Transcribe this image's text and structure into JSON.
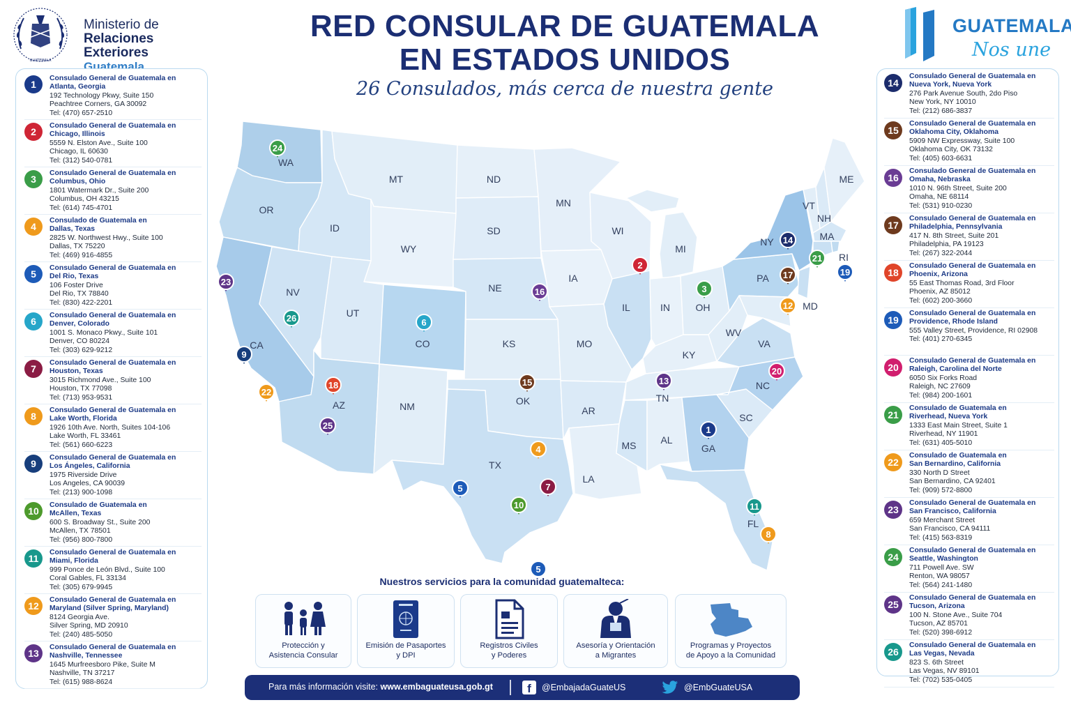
{
  "ministry": {
    "line1": "Ministerio de",
    "line2": "Relaciones Exteriores",
    "line3": "Guatemala",
    "seal_text": "GUATEMALA"
  },
  "title": {
    "line1": "RED CONSULAR DE GUATEMALA",
    "line2": "EN ESTADOS UNIDOS"
  },
  "subtitle": "26 Consulados, más cerca de nuestra gente",
  "brand": {
    "word": "GUATEMALA",
    "slogan": "Nos une"
  },
  "colors": {
    "navy": "#1b2e73",
    "accent": "#2479c4",
    "badges": {
      "1": "#1a3a8a",
      "2": "#cf2535",
      "3": "#3a9d48",
      "4": "#ef9a1c",
      "5": "#1d5bb8",
      "6": "#26a6c9",
      "7": "#8b1c44",
      "8": "#ef9a1c",
      "9": "#173e7c",
      "10": "#4d9a2c",
      "11": "#18988c",
      "12": "#ef9a1c",
      "13": "#5e3488",
      "14": "#1c2c6c",
      "15": "#6e3a1e",
      "16": "#6a3c94",
      "17": "#6e3a1e",
      "18": "#e0452a",
      "19": "#1d5bb8",
      "20": "#d11e6e",
      "21": "#3a9d48",
      "22": "#ef9a1c",
      "23": "#5e3488",
      "24": "#3a9d48",
      "25": "#5e3488",
      "26": "#18988c"
    }
  },
  "consulates_left": [
    {
      "num": "1",
      "name1": "Consulado General de Guatemala en",
      "name2": "Atlanta, Georgia",
      "addr1": "192 Technology Pkwy, Suite 150",
      "addr2": "Peachtree Corners, GA 30092",
      "tel": "Tel: (470) 657-2510"
    },
    {
      "num": "2",
      "name1": "Consulado General de Guatemala en",
      "name2": "Chicago, Illinois",
      "addr1": "5559 N. Elston Ave., Suite 100",
      "addr2": "Chicago, IL 60630",
      "tel": "Tel: (312) 540-0781"
    },
    {
      "num": "3",
      "name1": "Consulado General de Guatemala en",
      "name2": "Columbus, Ohio",
      "addr1": "1801 Watermark Dr., Suite 200",
      "addr2": "Columbus, OH 43215",
      "tel": "Tel: (614) 745-4701"
    },
    {
      "num": "4",
      "name1": "Consulado de Guatemala en",
      "name2": "Dallas, Texas",
      "addr1": "2825 W. Northwest Hwy., Suite 100",
      "addr2": "Dallas, TX 75220",
      "tel": "Tel: (469) 916-4855"
    },
    {
      "num": "5",
      "name1": "Consulado General de Guatemala en",
      "name2": "Del Rio, Texas",
      "addr1": "106 Foster Drive",
      "addr2": "Del Rio, TX 78840",
      "tel": "Tel: (830) 422-2201"
    },
    {
      "num": "6",
      "name1": "Consulado General de Guatemala en",
      "name2": "Denver, Colorado",
      "addr1": "1001 S. Monaco Pkwy., Suite 101",
      "addr2": "Denver, CO 80224",
      "tel": "Tel: (303) 629-9212"
    },
    {
      "num": "7",
      "name1": "Consulado General de Guatemala en",
      "name2": "Houston, Texas",
      "addr1": "3015 Richmond Ave., Suite 100",
      "addr2": "Houston, TX 77098",
      "tel": "Tel: (713) 953-9531"
    },
    {
      "num": "8",
      "name1": "Consulado General de Guatemala en",
      "name2": "Lake Worth, Florida",
      "addr1": "1926 10th Ave. North, Suites 104-106",
      "addr2": "Lake Worth, FL 33461",
      "tel": "Tel: (561) 660-6223"
    },
    {
      "num": "9",
      "name1": "Consulado General de Guatemala en",
      "name2": "Los Ángeles, California",
      "addr1": "1975 Riverside Drive",
      "addr2": "Los Angeles, CA 90039",
      "tel": "Tel: (213) 900-1098"
    },
    {
      "num": "10",
      "name1": "Consulado de Guatemala en",
      "name2": "McAllen, Texas",
      "addr1": "600 S. Broadway St., Suite 200",
      "addr2": "McAllen, TX 78501",
      "tel": "Tel: (956) 800-7800"
    },
    {
      "num": "11",
      "name1": "Consulado General de Guatemala en",
      "name2": "Miami, Florida",
      "addr1": "999 Ponce de León Blvd., Suite 100",
      "addr2": "Coral Gables, FL 33134",
      "tel": "Tel: (305) 679-9945"
    },
    {
      "num": "12",
      "name1": "Consulado General de Guatemala en",
      "name2": "Maryland (Silver Spring, Maryland)",
      "addr1": "8124 Georgia Ave.",
      "addr2": "Silver Spring, MD 20910",
      "tel": "Tel: (240) 485-5050"
    },
    {
      "num": "13",
      "name1": "Consulado General de Guatemala en",
      "name2": "Nashville, Tennessee",
      "addr1": "1645 Murfreesboro Pike, Suite M",
      "addr2": "Nashville, TN 37217",
      "tel": "Tel: (615) 988-8624"
    }
  ],
  "consulates_right": [
    {
      "num": "14",
      "name1": "Consulado General de Guatemala en",
      "name2": "Nueva York, Nueva York",
      "addr1": "276 Park Avenue South, 2do Piso",
      "addr2": "New York, NY 10010",
      "tel": "Tel: (212) 686-3837"
    },
    {
      "num": "15",
      "name1": "Consulado General de Guatemala en",
      "name2": "Oklahoma City, Oklahoma",
      "addr1": "5909 NW Expressway, Suite 100",
      "addr2": "Oklahoma City, OK 73132",
      "tel": "Tel: (405) 603-6631"
    },
    {
      "num": "16",
      "name1": "Consulado General de Guatemala en",
      "name2": "Omaha, Nebraska",
      "addr1": "1010 N. 96th Street, Suite 200",
      "addr2": "Omaha, NE 68114",
      "tel": "Tel: (531) 910-0230"
    },
    {
      "num": "17",
      "name1": "Consulado General de Guatemala en",
      "name2": "Philadelphia, Pennsylvania",
      "addr1": "417 N. 8th Street, Suite 201",
      "addr2": "Philadelphia, PA 19123",
      "tel": "Tel: (267) 322-2044"
    },
    {
      "num": "18",
      "name1": "Consulado General de Guatemala en",
      "name2": "Phoenix, Arizona",
      "addr1": "55 East Thomas Road, 3rd Floor",
      "addr2": "Phoenix, AZ 85012",
      "tel": "Tel: (602) 200-3660"
    },
    {
      "num": "19",
      "name1": "Consulado General de Guatemala en",
      "name2": "Providence, Rhode Island",
      "addr1": "555 Valley Street, Providence, RI 02908",
      "addr2": "",
      "tel": "Tel: (401) 270-6345"
    },
    {
      "num": "20",
      "name1": "Consulado General de Guatemala en",
      "name2": "Raleigh, Carolina del Norte",
      "addr1": "6050 Six Forks Road",
      "addr2": "Raleigh, NC 27609",
      "tel": "Tel: (984) 200-1601"
    },
    {
      "num": "21",
      "name1": "Consulado de Guatemala en",
      "name2": "Riverhead, Nueva York",
      "addr1": "1333 East Main Street, Suite 1",
      "addr2": "Riverhead, NY 11901",
      "tel": "Tel: (631) 405-5010"
    },
    {
      "num": "22",
      "name1": "Consulado de Guatemala en",
      "name2": "San Bernardino, California",
      "addr1": "330 North D Street",
      "addr2": "San Bernardino, CA 92401",
      "tel": "Tel: (909) 572-8800"
    },
    {
      "num": "23",
      "name1": "Consulado General de Guatemala en",
      "name2": "San Francisco, California",
      "addr1": "659 Merchant Street",
      "addr2": "San Francisco, CA 94111",
      "tel": "Tel: (415) 563-8319"
    },
    {
      "num": "24",
      "name1": "Consulado General de Guatemala en",
      "name2": "Seattle, Washington",
      "addr1": "711 Powell Ave. SW",
      "addr2": "Renton, WA 98057",
      "tel": "Tel: (564) 241-1480"
    },
    {
      "num": "25",
      "name1": "Consulado General de Guatemala en",
      "name2": "Tucson, Arizona",
      "addr1": "100 N. Stone Ave., Suite 704",
      "addr2": "Tucson, AZ 85701",
      "tel": "Tel: (520) 398-6912"
    },
    {
      "num": "26",
      "name1": "Consulado General de Guatemala en",
      "name2": "Las Vegas, Nevada",
      "addr1": "823 S. 6th Street",
      "addr2": "Las Vegas, NV 89101",
      "tel": "Tel: (702) 535-0405"
    }
  ],
  "map": {
    "state_labels": [
      "WA",
      "OR",
      "CA",
      "NV",
      "ID",
      "MT",
      "WY",
      "UT",
      "CO",
      "AZ",
      "NM",
      "ND",
      "SD",
      "NE",
      "KS",
      "OK",
      "TX",
      "MN",
      "IA",
      "MO",
      "AR",
      "LA",
      "WI",
      "IL",
      "MI",
      "IN",
      "OH",
      "KY",
      "TN",
      "MS",
      "AL",
      "GA",
      "FL",
      "SC",
      "NC",
      "VA",
      "WV",
      "PA",
      "NY",
      "VT",
      "NH",
      "ME",
      "MA",
      "RI",
      "MD"
    ],
    "markers": [
      "1",
      "2",
      "3",
      "4",
      "5",
      "5",
      "6",
      "7",
      "8",
      "9",
      "10",
      "11",
      "12",
      "13",
      "14",
      "15",
      "16",
      "17",
      "18",
      "19",
      "20",
      "21",
      "22",
      "23",
      "24",
      "25",
      "26"
    ]
  },
  "services": {
    "title": "Nuestros servicios para la comunidad guatemalteca:",
    "items": [
      {
        "icon": "family-icon",
        "line1": "Protección y",
        "line2": "Asistencia Consular"
      },
      {
        "icon": "passport-icon",
        "line1": "Emisión de Pasaportes",
        "line2": "y DPI"
      },
      {
        "icon": "document-icon",
        "line1": "Registros Civiles",
        "line2": "y Poderes"
      },
      {
        "icon": "advisor-icon",
        "line1": "Asesoría y Orientación",
        "line2": "a Migrantes"
      },
      {
        "icon": "guatemala-map-icon",
        "line1": "Programas y Proyectos",
        "line2": "de Apoyo a la Comunidad"
      }
    ]
  },
  "footer": {
    "info_label": "Para más información visite:",
    "website": "www.embaguateusa.gob.gt",
    "facebook": "@EmbajadaGuateUS",
    "twitter": "@EmbGuateUSA"
  }
}
